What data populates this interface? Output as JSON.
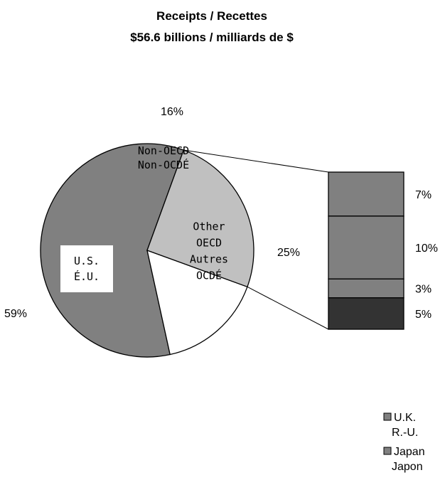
{
  "chart_data": {
    "type": "pie",
    "title": "Receipts / Recettes",
    "subtitle": "$56.6 billions / milliards de $",
    "slices": [
      {
        "label_lines": [
          "U.S.",
          "É.U."
        ],
        "value": 59,
        "value_label": "59%",
        "color": "#808080"
      },
      {
        "label_lines": [
          "Non-OECD",
          "Non-OCDÉ"
        ],
        "value": 16,
        "value_label": "16%",
        "color": "#ffffff"
      },
      {
        "label_lines": [
          "Other",
          "OECD",
          "Autres",
          "OCDÉ"
        ],
        "value": 25,
        "value_label": "25%",
        "color": "#c0c0c0"
      }
    ],
    "breakdown": {
      "of_slice": "Other OECD / Autres OCDÉ",
      "segments": [
        {
          "name": "",
          "value": 7,
          "value_label": "7%",
          "color": "#808080"
        },
        {
          "name": "",
          "value": 10,
          "value_label": "10%",
          "color": "#808080"
        },
        {
          "name": "",
          "value": 3,
          "value_label": "3%",
          "color": "#808080"
        },
        {
          "name": "",
          "value": 5,
          "value_label": "5%",
          "color": "#333333"
        }
      ]
    },
    "legend": {
      "position": "bottom-right",
      "entries": [
        {
          "lines": [
            "U.K.",
            "R.-U."
          ],
          "color": "#808080"
        },
        {
          "lines": [
            "Japan",
            "Japon"
          ],
          "color": "#808080"
        }
      ]
    }
  }
}
